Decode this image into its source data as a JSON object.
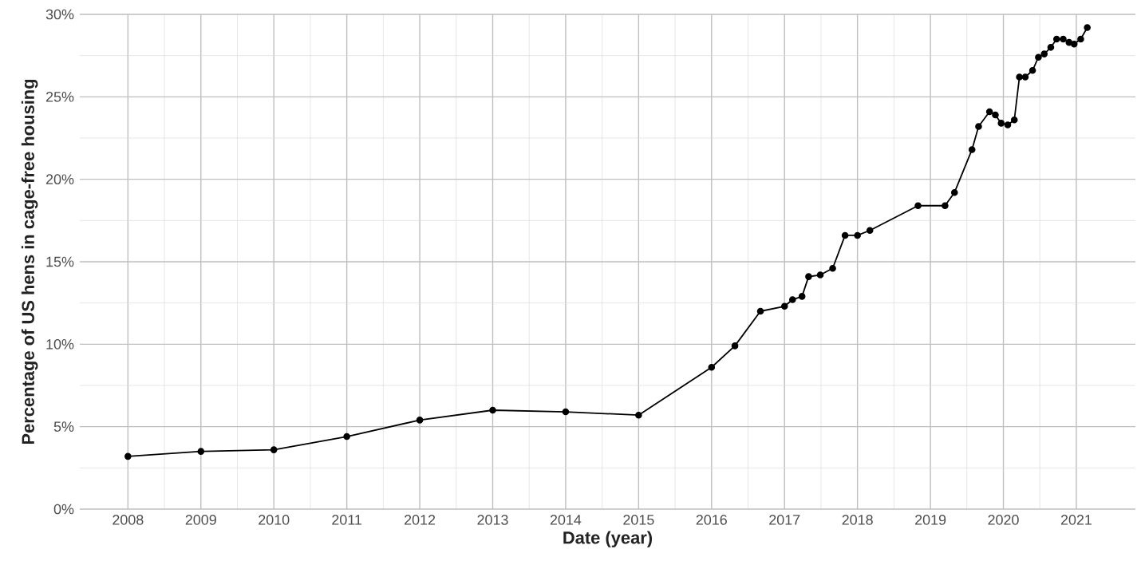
{
  "chart_data": {
    "type": "line",
    "xlabel": "Date (year)",
    "ylabel": "Percentage of US hens in cage-free housing",
    "x": [
      2008,
      2009,
      2010,
      2011,
      2012,
      2013,
      2014,
      2015,
      2016.0,
      2016.32,
      2016.67,
      2017.0,
      2017.11,
      2017.24,
      2017.33,
      2017.49,
      2017.66,
      2017.83,
      2018.0,
      2018.17,
      2018.83,
      2019.2,
      2019.33,
      2019.57,
      2019.66,
      2019.81,
      2019.89,
      2019.97,
      2020.06,
      2020.15,
      2020.22,
      2020.3,
      2020.4,
      2020.48,
      2020.56,
      2020.65,
      2020.73,
      2020.82,
      2020.9,
      2020.97,
      2021.06,
      2021.15
    ],
    "values": [
      3.2,
      3.5,
      3.6,
      4.4,
      5.4,
      6.0,
      5.9,
      5.7,
      8.6,
      9.9,
      12.0,
      12.3,
      12.7,
      12.9,
      14.1,
      14.2,
      14.6,
      16.6,
      16.6,
      16.9,
      18.4,
      18.4,
      19.2,
      21.8,
      23.2,
      24.1,
      23.9,
      23.4,
      23.3,
      23.6,
      26.2,
      26.2,
      26.6,
      27.4,
      27.6,
      28.0,
      28.5,
      28.5,
      28.3,
      28.2,
      28.5,
      29.2
    ],
    "color": "#000000",
    "marker": "circle",
    "line_style": "solid",
    "grid": true,
    "xlim": [
      2007.34,
      2021.81
    ],
    "ylim": [
      0,
      30
    ],
    "xticks": [
      2008,
      2009,
      2010,
      2011,
      2012,
      2013,
      2014,
      2015,
      2016,
      2017,
      2018,
      2019,
      2020,
      2021
    ],
    "yticks": [
      {
        "value": 0,
        "label": "0%"
      },
      {
        "value": 5,
        "label": "5%"
      },
      {
        "value": 10,
        "label": "10%"
      },
      {
        "value": 15,
        "label": "15%"
      },
      {
        "value": 20,
        "label": "20%"
      },
      {
        "value": 25,
        "label": "25%"
      },
      {
        "value": 30,
        "label": "30%"
      }
    ]
  }
}
